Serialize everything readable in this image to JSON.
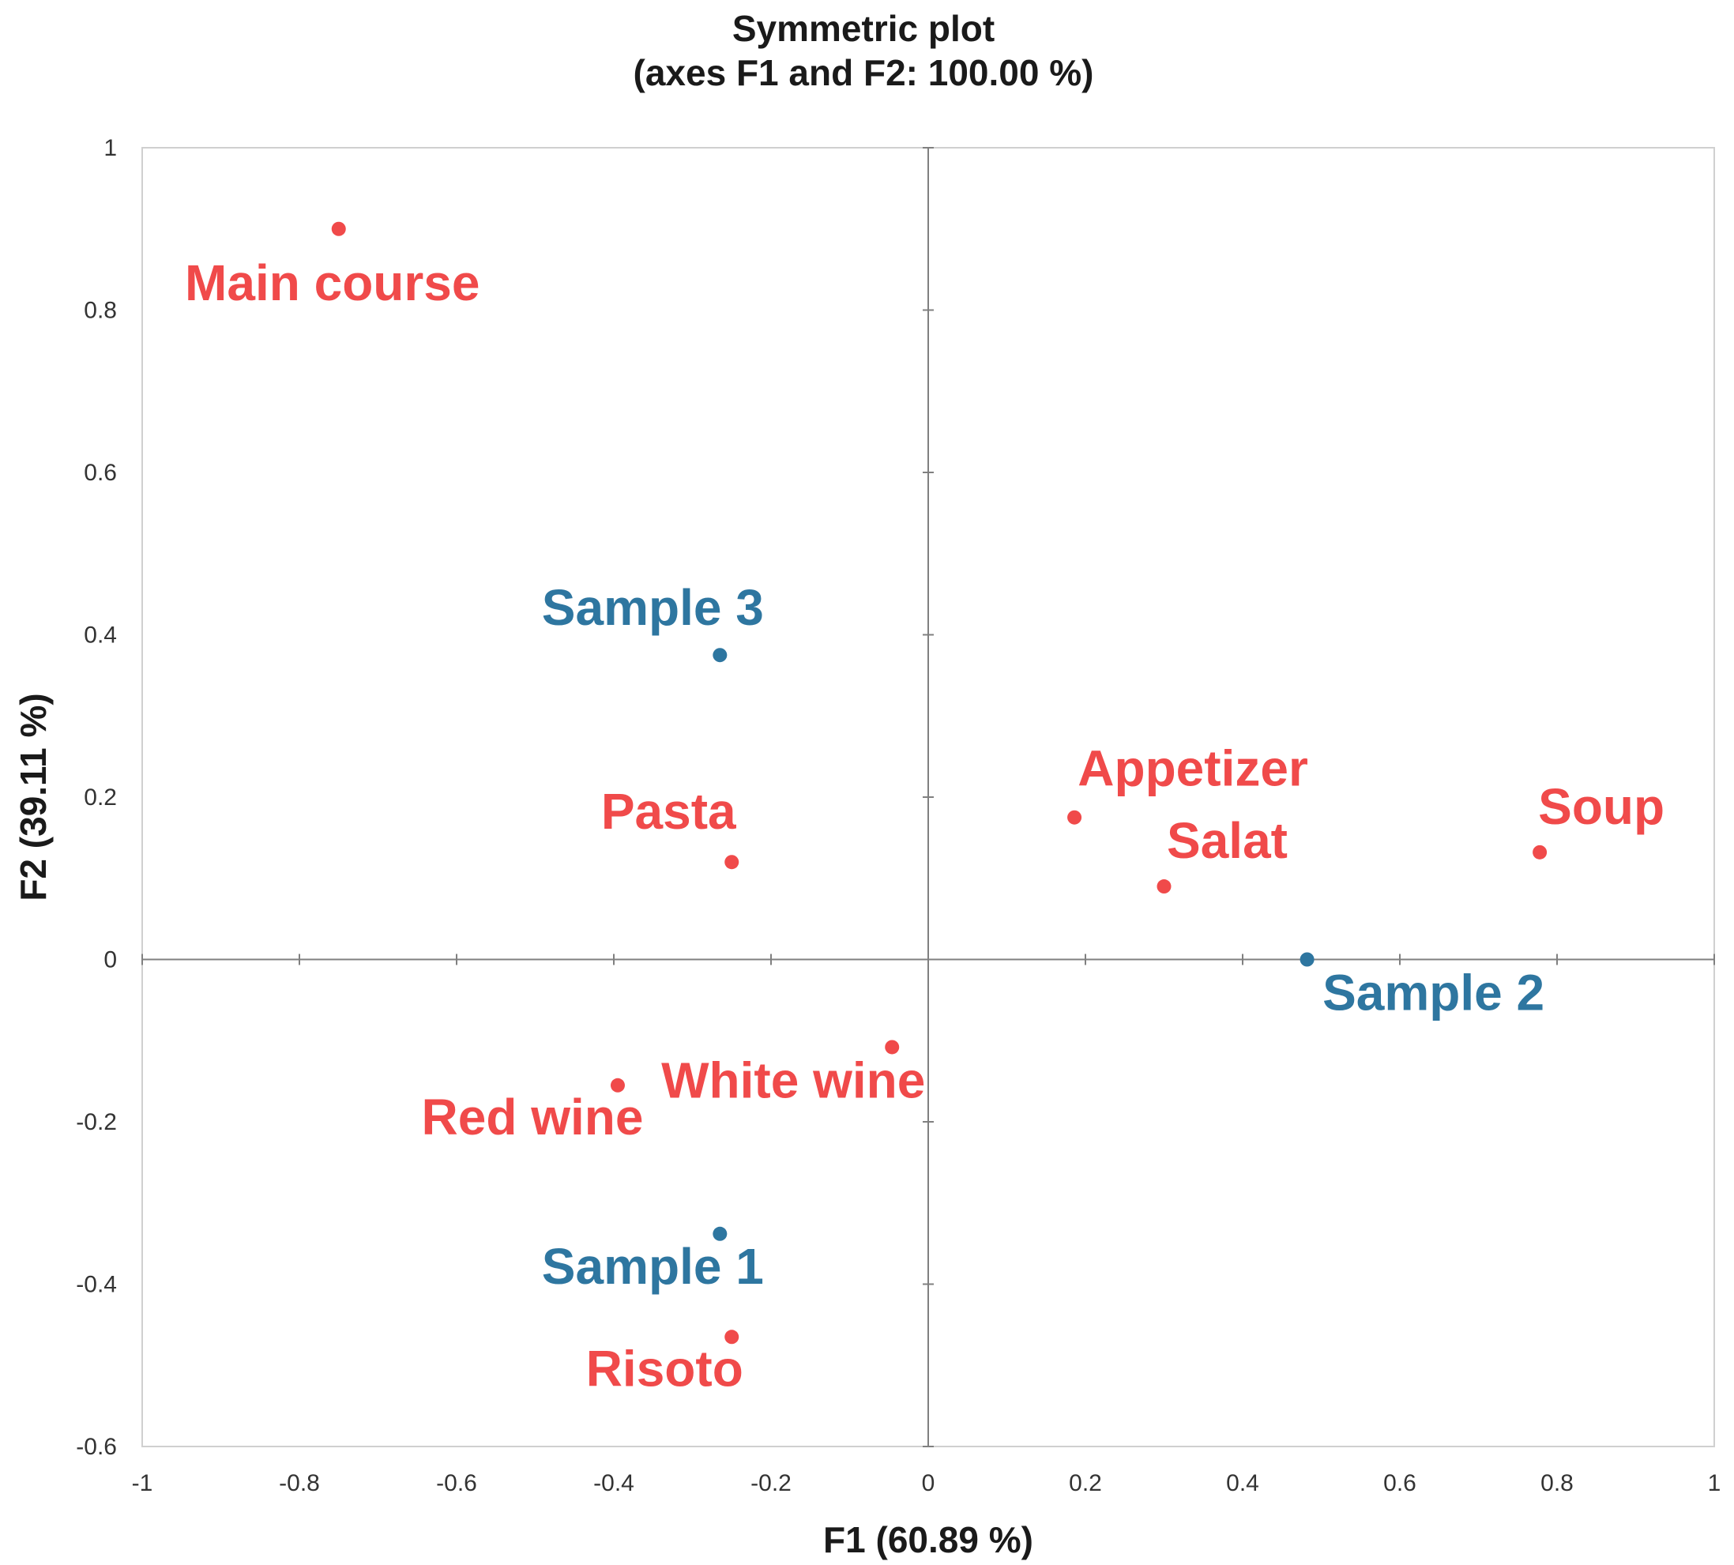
{
  "chart_data": {
    "type": "scatter",
    "title": "Symmetric plot",
    "subtitle": "(axes F1 and F2: 100.00 %)",
    "xlabel": "F1 (60.89 %)",
    "ylabel": "F2 (39.11 %)",
    "xlim": [
      -1,
      1
    ],
    "ylim": [
      -0.6,
      1
    ],
    "x_ticks": [
      "-1",
      "-0.8",
      "-0.6",
      "-0.4",
      "-0.2",
      "0",
      "0.2",
      "0.4",
      "0.6",
      "0.8",
      "1"
    ],
    "y_ticks": [
      "1",
      "0.8",
      "0.6",
      "0.4",
      "0.2",
      "0",
      "-0.2",
      "-0.4",
      "-0.6"
    ],
    "grid": false,
    "colors": {
      "rows": "#f04a4a",
      "samples": "#2e76a0"
    },
    "points": [
      {
        "label": "Main course",
        "x": -0.75,
        "y": 0.9,
        "group": "rows"
      },
      {
        "label": "Pasta",
        "x": -0.25,
        "y": 0.12,
        "group": "rows"
      },
      {
        "label": "Appetizer",
        "x": 0.186,
        "y": 0.175,
        "group": "rows"
      },
      {
        "label": "Salat",
        "x": 0.3,
        "y": 0.09,
        "group": "rows"
      },
      {
        "label": "Soup",
        "x": 0.778,
        "y": 0.132,
        "group": "rows"
      },
      {
        "label": "White wine",
        "x": -0.046,
        "y": -0.108,
        "group": "rows"
      },
      {
        "label": "Red wine",
        "x": -0.395,
        "y": -0.155,
        "group": "rows"
      },
      {
        "label": "Risoto",
        "x": -0.25,
        "y": -0.465,
        "group": "rows"
      },
      {
        "label": "Sample 1",
        "x": -0.265,
        "y": -0.338,
        "group": "samples"
      },
      {
        "label": "Sample 2",
        "x": 0.482,
        "y": 0.0,
        "group": "samples"
      },
      {
        "label": "Sample 3",
        "x": -0.265,
        "y": 0.375,
        "group": "samples"
      }
    ]
  }
}
